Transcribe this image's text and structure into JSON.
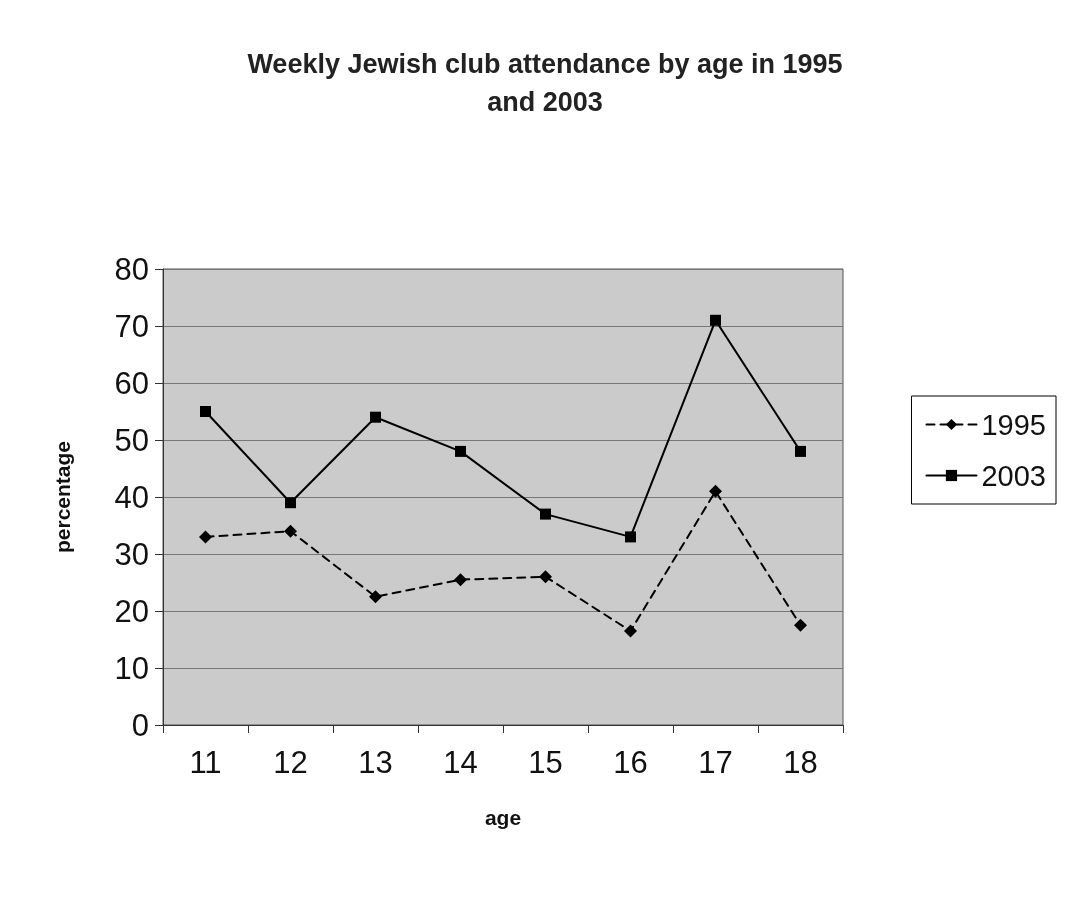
{
  "chart_data": {
    "type": "line",
    "title": "Weekly Jewish club attendance by age in 1995\nand 2003",
    "xlabel": "age",
    "ylabel": "percentage",
    "categories": [
      "11",
      "12",
      "13",
      "14",
      "15",
      "16",
      "17",
      "18"
    ],
    "series": [
      {
        "name": "1995",
        "color": "#000000",
        "marker": "diamond",
        "line_style": "dashed",
        "values": [
          33,
          34,
          22.5,
          25.5,
          26,
          16.5,
          41,
          17.5
        ]
      },
      {
        "name": "2003",
        "color": "#000000",
        "marker": "square",
        "line_style": "solid",
        "values": [
          55,
          39,
          54,
          48,
          37,
          33,
          71,
          48
        ]
      }
    ],
    "ylim": [
      0,
      80
    ],
    "yticks": [
      0,
      10,
      20,
      30,
      40,
      50,
      60,
      70,
      80
    ],
    "grid": "y",
    "legend": "right"
  }
}
